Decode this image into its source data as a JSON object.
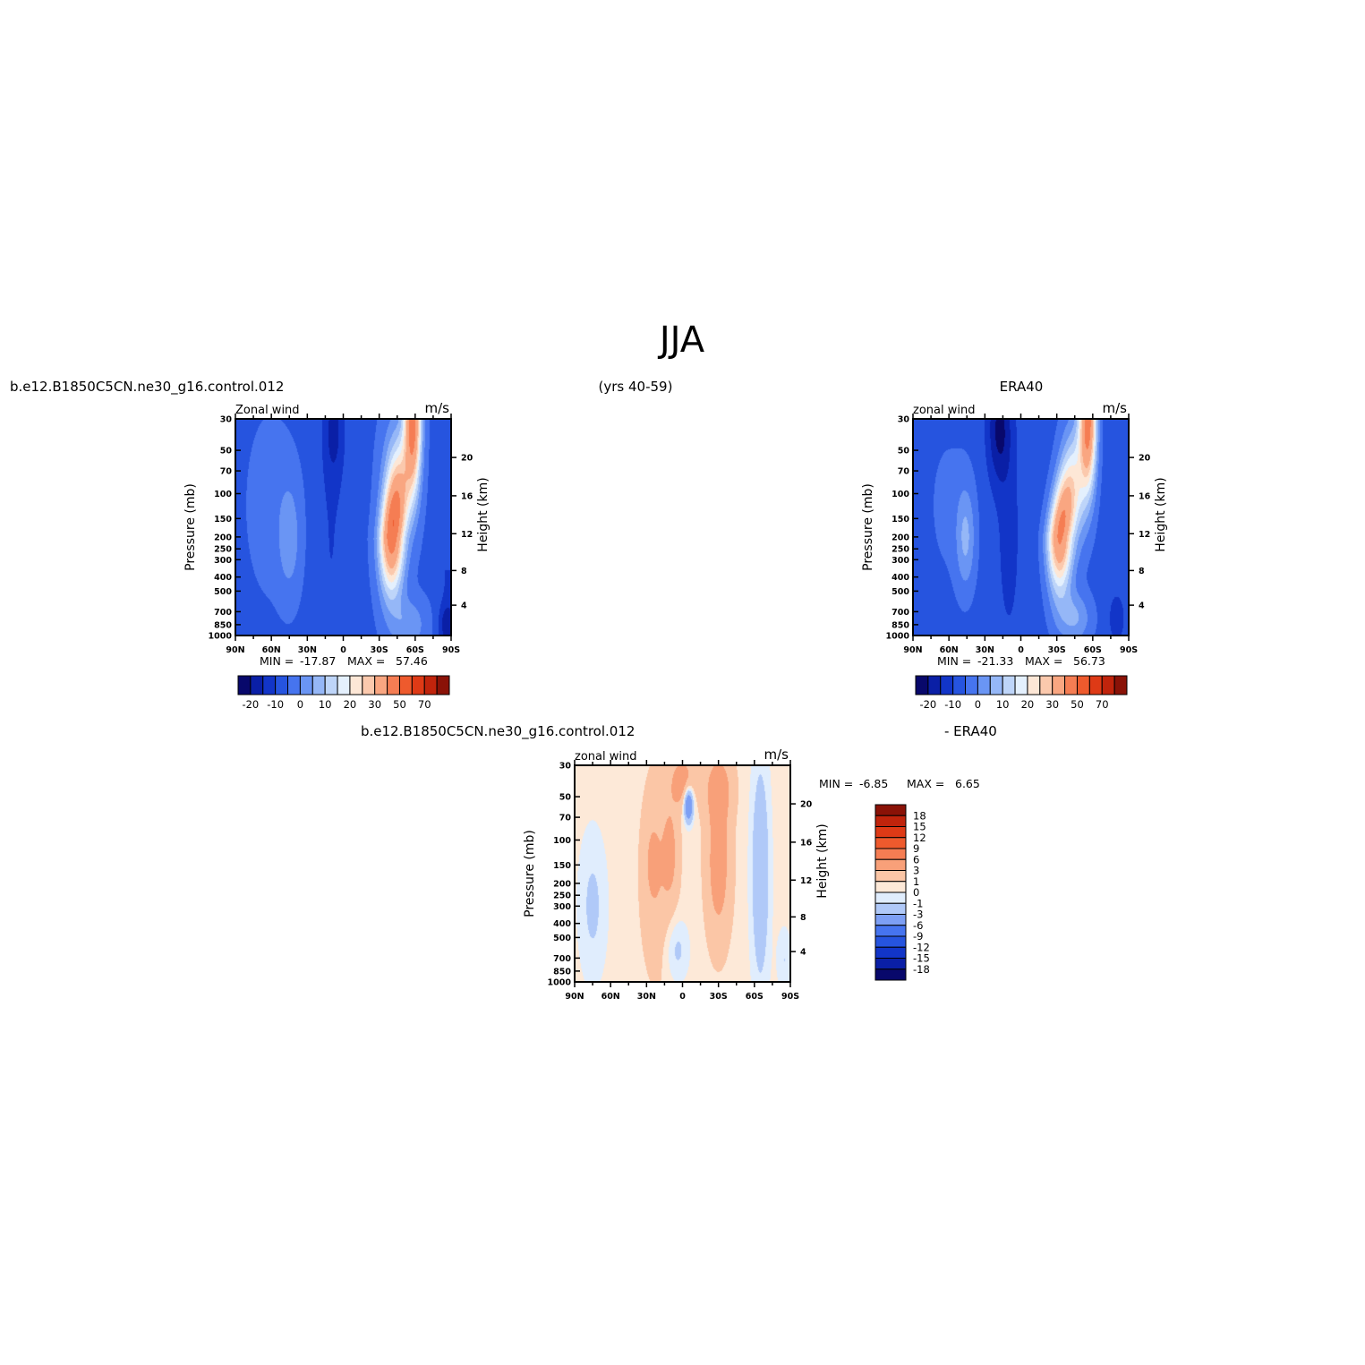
{
  "figure": {
    "title": "JJA",
    "years": "(yrs 40-59)",
    "case_name": "b.e12.B1850C5CN.ne30_g16.control.012",
    "obs_name": "ERA40",
    "diff_suffix": "- ERA40"
  },
  "colors": {
    "main_scale": [
      "#08086b",
      "#0a1fa6",
      "#1235c8",
      "#2654df",
      "#4674ef",
      "#6a95f4",
      "#95b7f7",
      "#bed5f9",
      "#e4f0fd",
      "#fde7d6",
      "#fbc9ad",
      "#f9a681",
      "#f57d53",
      "#ee5a2d",
      "#de3a16",
      "#c0240c",
      "#8a1207"
    ],
    "diff_scale": [
      "#08086b",
      "#0a1fa6",
      "#1235c8",
      "#2654df",
      "#4674ef",
      "#7d9ff4",
      "#b0c9f8",
      "#e0edfd",
      "#fde9d8",
      "#fbc6a6",
      "#f8a079",
      "#f57d53",
      "#ee5a2d",
      "#de3a16",
      "#c0240c",
      "#8a1207"
    ]
  },
  "chart_data": [
    {
      "type": "heatmap",
      "panel": "model",
      "title_left": "Zonal wind",
      "title_right": "m/s",
      "ylabel": "Pressure (mb)",
      "ylabel_right": "Height (km)",
      "x_ticks": [
        "90N",
        "60N",
        "30N",
        "0",
        "30S",
        "60S",
        "90S"
      ],
      "y_ticks": [
        "30",
        "50",
        "70",
        "100",
        "150",
        "200",
        "250",
        "300",
        "400",
        "500",
        "700",
        "850",
        "1000"
      ],
      "y_right_ticks": [
        "20",
        "16",
        "12",
        "8",
        "4"
      ],
      "xlim": [
        "90N",
        "90S"
      ],
      "ylim": [
        1000,
        30
      ],
      "levels": [
        -20,
        -15,
        -10,
        -5,
        0,
        5,
        10,
        15,
        20,
        25,
        30,
        40,
        50,
        60,
        70,
        80
      ],
      "colorbar_labels": [
        "-20",
        "-10",
        "0",
        "10",
        "20",
        "30",
        "50",
        "70"
      ],
      "stats": {
        "min_label": "MIN =",
        "min": "-17.87",
        "max_label": "MAX =",
        "max": "57.46"
      },
      "features": [
        {
          "lat": 43,
          "pressure": 200,
          "value": 5
        },
        {
          "lat": 5,
          "pressure": 40,
          "value": -17.87
        },
        {
          "lat": -40,
          "pressure": 200,
          "value": 45
        },
        {
          "lat": -55,
          "pressure": 35,
          "value": 57.46
        }
      ]
    },
    {
      "type": "heatmap",
      "panel": "obs",
      "title_left": "zonal wind",
      "title_right": "m/s",
      "ylabel": "Pressure (mb)",
      "ylabel_right": "Height (km)",
      "x_ticks": [
        "90N",
        "60N",
        "30N",
        "0",
        "30S",
        "60S",
        "90S"
      ],
      "y_ticks": [
        "30",
        "50",
        "70",
        "100",
        "150",
        "200",
        "250",
        "300",
        "400",
        "500",
        "700",
        "850",
        "1000"
      ],
      "y_right_ticks": [
        "20",
        "16",
        "12",
        "8",
        "4"
      ],
      "xlim": [
        "90N",
        "90S"
      ],
      "ylim": [
        1000,
        30
      ],
      "levels": [
        -20,
        -15,
        -10,
        -5,
        0,
        5,
        10,
        15,
        20,
        25,
        30,
        40,
        50,
        60,
        70,
        80
      ],
      "colorbar_labels": [
        "-20",
        "-10",
        "0",
        "10",
        "20",
        "30",
        "50",
        "70"
      ],
      "stats": {
        "min_label": "MIN =",
        "min": "-21.33",
        "max_label": "MAX =",
        "max": "56.73"
      },
      "features": [
        {
          "lat": 45,
          "pressure": 200,
          "value": 8
        },
        {
          "lat": 20,
          "pressure": 35,
          "value": -21.33
        },
        {
          "lat": -30,
          "pressure": 200,
          "value": 45
        },
        {
          "lat": -55,
          "pressure": 35,
          "value": 56.73
        }
      ]
    },
    {
      "type": "heatmap",
      "panel": "difference",
      "title_left": "zonal wind",
      "title_right": "m/s",
      "ylabel": "Pressure (mb)",
      "ylabel_right": "Height (km)",
      "x_ticks": [
        "90N",
        "60N",
        "30N",
        "0",
        "30S",
        "60S",
        "90S"
      ],
      "y_ticks": [
        "30",
        "50",
        "70",
        "100",
        "150",
        "200",
        "250",
        "300",
        "400",
        "500",
        "700",
        "850",
        "1000"
      ],
      "y_right_ticks": [
        "20",
        "16",
        "12",
        "8",
        "4"
      ],
      "xlim": [
        "90N",
        "90S"
      ],
      "ylim": [
        1000,
        30
      ],
      "levels": [
        -18,
        -15,
        -12,
        -9,
        -6,
        -3,
        -1,
        0,
        1,
        3,
        6,
        9,
        12,
        15,
        18
      ],
      "colorbar_labels": [
        "18",
        "15",
        "12",
        "9",
        "6",
        "3",
        "1",
        "0",
        "-1",
        "-3",
        "-6",
        "-9",
        "-12",
        "-15",
        "-18"
      ],
      "stats": {
        "min_label": "MIN =",
        "min": "-6.85",
        "max_label": "MAX =",
        "max": "6.65"
      },
      "features": [
        {
          "lat": -5,
          "pressure": 65,
          "value": -6.85
        },
        {
          "lat": -30,
          "pressure": 120,
          "value": 6.65
        },
        {
          "lat": 25,
          "pressure": 150,
          "value": 3
        },
        {
          "lat": -65,
          "pressure": 300,
          "value": -3
        }
      ]
    }
  ]
}
